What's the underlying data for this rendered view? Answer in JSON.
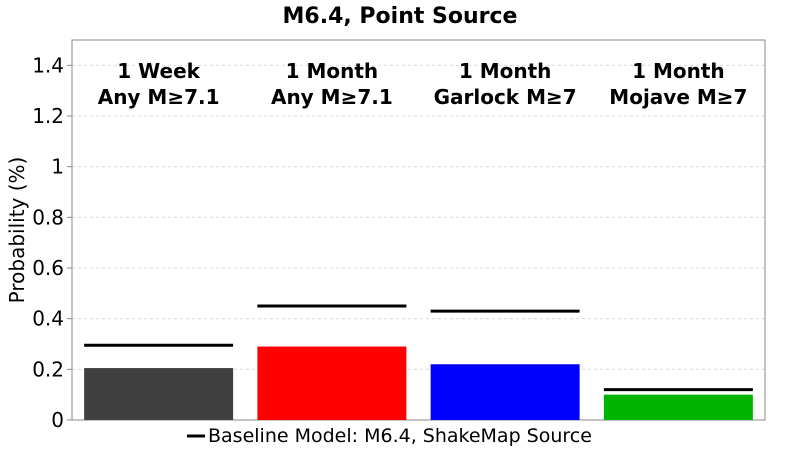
{
  "chart_data": {
    "type": "bar",
    "title": "M6.4, Point Source",
    "xlabel": "",
    "ylabel": "Probability (%)",
    "ylim": [
      0,
      1.5
    ],
    "yticks": [
      0,
      0.2,
      0.4,
      0.6,
      0.8,
      1,
      1.2,
      1.4
    ],
    "ytick_labels": [
      "0",
      "0.2",
      "0.4",
      "0.6",
      "0.8",
      "1",
      "1.2",
      "1.4"
    ],
    "grid": true,
    "categories": [
      {
        "line1": "1 Week",
        "line2": "Any M≥7.1"
      },
      {
        "line1": "1 Month",
        "line2": "Any M≥7.1"
      },
      {
        "line1": "1 Month",
        "line2": "Garlock M≥7"
      },
      {
        "line1": "1 Month",
        "line2": "Mojave M≥7"
      }
    ],
    "values": [
      0.205,
      0.29,
      0.22,
      0.1
    ],
    "bar_colors": [
      "#404040",
      "#ff0000",
      "#0000ff",
      "#00b400"
    ],
    "baseline": {
      "name": "Baseline Model: M6.4, ShakeMap Source",
      "values": [
        0.295,
        0.45,
        0.43,
        0.12
      ],
      "color": "#000000"
    },
    "legend": {
      "placement": "bottom-center",
      "label": "Baseline Model: M6.4, ShakeMap Source"
    }
  }
}
